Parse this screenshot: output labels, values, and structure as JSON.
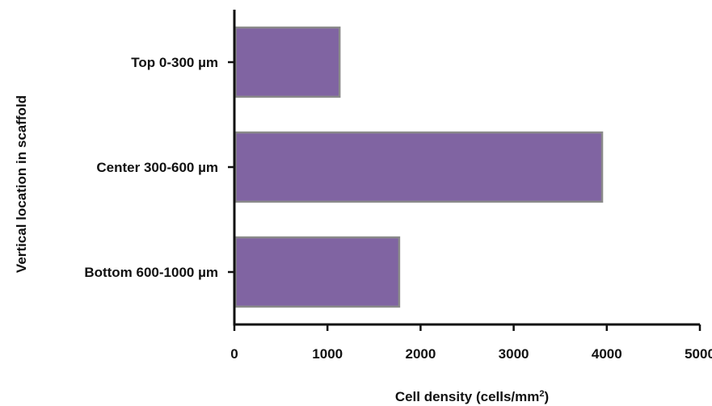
{
  "chart_data": {
    "type": "bar",
    "orientation": "horizontal",
    "categories": [
      "Top 0-300 µm",
      "Center 300-600 µm",
      "Bottom 600-1000 µm"
    ],
    "values": [
      1130,
      3950,
      1770
    ],
    "xlabel": "Cell density (cells/mm",
    "xlabel_superscript": "2",
    "xlabel_suffix": ")",
    "ylabel": "Vertical location in scaffold",
    "xlim": [
      0,
      5000
    ],
    "xticks": [
      0,
      1000,
      2000,
      3000,
      4000,
      5000
    ],
    "grid": false,
    "colors": {
      "bar_fill": "#8064a2",
      "bar_edge": "#8a8a8a",
      "axis": "#111111"
    }
  }
}
